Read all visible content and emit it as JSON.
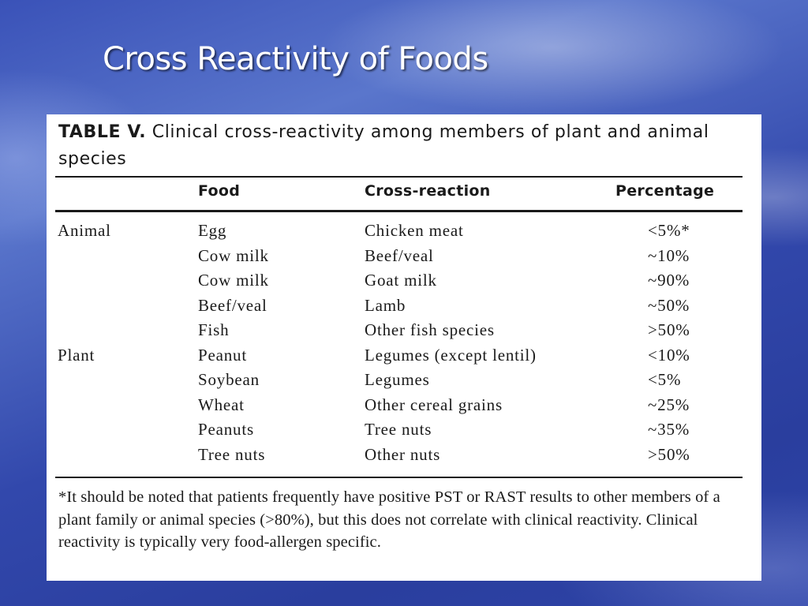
{
  "slide": {
    "title": "Cross Reactivity of Foods"
  },
  "table": {
    "caption_label": "TABLE V.",
    "caption_text": "Clinical cross-reactivity among members of plant and animal species",
    "headers": {
      "group": "",
      "food": "Food",
      "cross_reaction": "Cross-reaction",
      "percentage": "Percentage"
    },
    "rows": [
      {
        "group": "Animal",
        "food": "Egg",
        "cross_reaction": "Chicken meat",
        "percentage": "<5%*"
      },
      {
        "group": "",
        "food": "Cow milk",
        "cross_reaction": "Beef/veal",
        "percentage": "~10%"
      },
      {
        "group": "",
        "food": "Cow milk",
        "cross_reaction": "Goat milk",
        "percentage": "~90%"
      },
      {
        "group": "",
        "food": "Beef/veal",
        "cross_reaction": "Lamb",
        "percentage": "~50%"
      },
      {
        "group": "",
        "food": "Fish",
        "cross_reaction": "Other fish species",
        "percentage": ">50%"
      },
      {
        "group": "Plant",
        "food": "Peanut",
        "cross_reaction": "Legumes (except lentil)",
        "percentage": "<10%"
      },
      {
        "group": "",
        "food": "Soybean",
        "cross_reaction": "Legumes",
        "percentage": "<5%"
      },
      {
        "group": "",
        "food": "Wheat",
        "cross_reaction": "Other cereal grains",
        "percentage": "~25%"
      },
      {
        "group": "",
        "food": "Peanuts",
        "cross_reaction": "Tree nuts",
        "percentage": "~35%"
      },
      {
        "group": "",
        "food": "Tree nuts",
        "cross_reaction": "Other nuts",
        "percentage": ">50%"
      }
    ],
    "footnote": "*It should be noted that patients frequently have positive PST or RAST results to other members of a plant family or animal species (>80%), but this does not correlate with clinical reactivity. Clinical reactivity is typically very food-allergen specific."
  }
}
